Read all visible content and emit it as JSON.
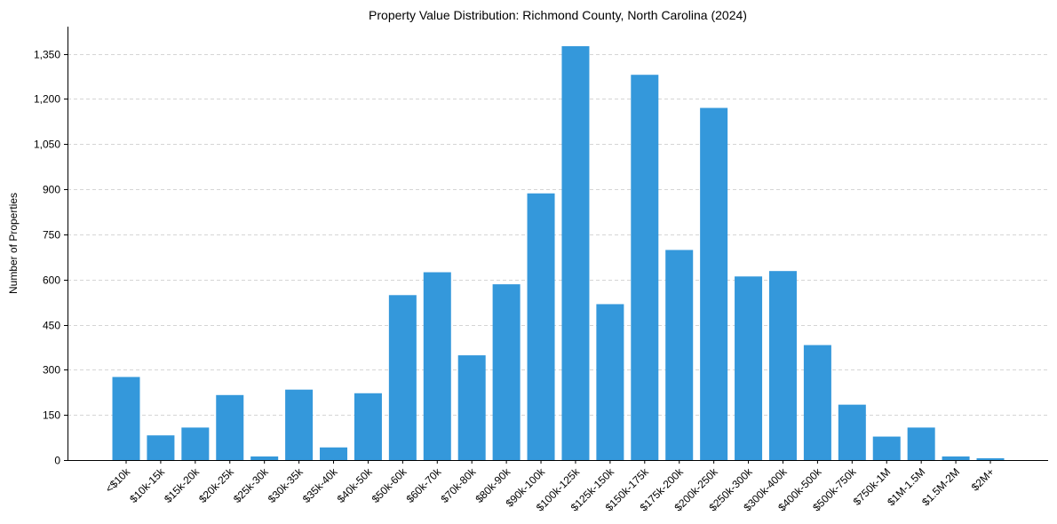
{
  "chart_data": {
    "type": "bar",
    "title": "Property Value Distribution: Richmond County, North Carolina (2024)",
    "xlabel": "",
    "ylabel": "Number of Properties",
    "ylim": [
      0,
      1440
    ],
    "yticks": [
      0,
      150,
      300,
      450,
      600,
      750,
      900,
      1050,
      1200,
      1350
    ],
    "ytick_labels": [
      "0",
      "150",
      "300",
      "450",
      "600",
      "750",
      "900",
      "1,050",
      "1,200",
      "1,350"
    ],
    "grid": "y-dashed",
    "bar_color": "#3498db",
    "categories": [
      "<$10k",
      "$10k-15k",
      "$15k-20k",
      "$20k-25k",
      "$25k-30k",
      "$30k-35k",
      "$35k-40k",
      "$40k-50k",
      "$50k-60k",
      "$60k-70k",
      "$70k-80k",
      "$80k-90k",
      "$90k-100k",
      "$100k-125k",
      "$125k-150k",
      "$150k-175k",
      "$175k-200k",
      "$200k-250k",
      "$250k-300k",
      "$300k-400k",
      "$400k-500k",
      "$500k-750k",
      "$750k-1M",
      "$1M-1.5M",
      "$1.5M-2M",
      "$2M+"
    ],
    "values": [
      276,
      82,
      108,
      216,
      12,
      234,
      42,
      222,
      548,
      624,
      348,
      584,
      886,
      1375,
      518,
      1280,
      698,
      1170,
      610,
      628,
      382,
      184,
      78,
      108,
      12,
      6
    ]
  }
}
